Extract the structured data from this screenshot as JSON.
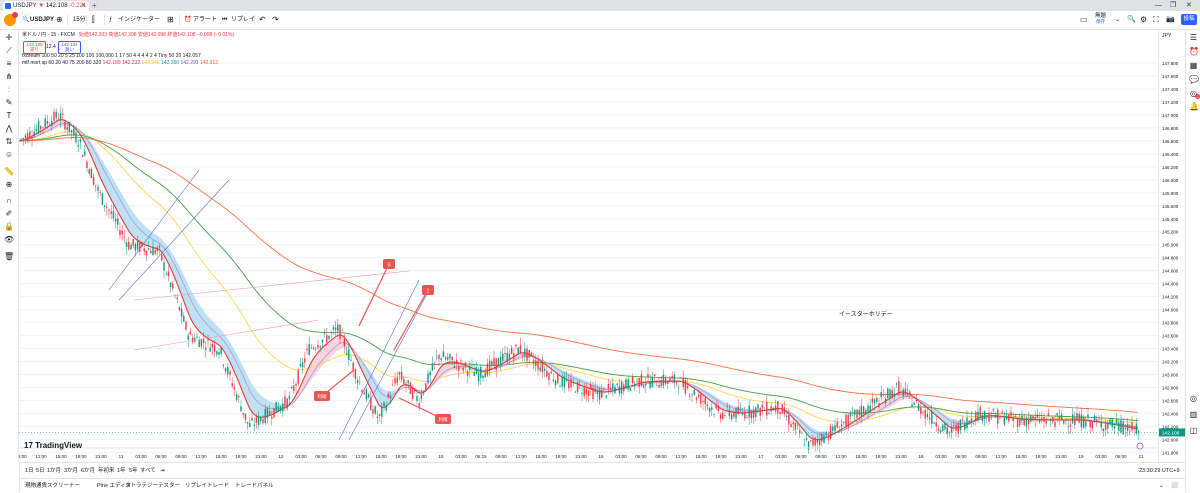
{
  "browser": {
    "tab_title": "USDJPY",
    "tab_price": "142.108",
    "tab_change": "-0.221",
    "new_tab": "+",
    "win_controls": [
      "—",
      "❐",
      "✕"
    ]
  },
  "toolbar": {
    "symbol": "USDJPY",
    "interval": "15分",
    "indicators_label": "インジケーター",
    "alert_label": "アラート",
    "replay_label": "リプレイ",
    "free_label": "無題",
    "free_sub": "保存",
    "publish_label": "投稿"
  },
  "legend": {
    "title": "米ドル / 円 · 15 · FXCM",
    "ohlc": "始値142.303 高値142.308 安値142.098 終値142.108 −0.008 (−0.01%)",
    "line2": "fxdream 100 50 20 5 25 100 100 100,000 1 17 50 4 4 4 4 2 4 Tiny 50 20  142.057",
    "line3_label": "mtf mort sp 60 20 40 75 200 80 320",
    "line3_values": [
      "142.189",
      "142.232",
      "142.246",
      "142.260",
      "142.291",
      "142.312"
    ],
    "sell_price": "142.109",
    "sell_label": "売り",
    "qty": "12.4",
    "buy_price": "142.131",
    "buy_label": "買い"
  },
  "price_axis": {
    "currency": "JPY",
    "labels": [
      "147.800",
      "147.600",
      "147.400",
      "147.200",
      "147.000",
      "146.800",
      "146.600",
      "146.400",
      "146.200",
      "146.000",
      "145.800",
      "145.600",
      "145.400",
      "145.200",
      "145.000",
      "144.800",
      "144.600",
      "144.400",
      "144.200",
      "144.000",
      "143.800",
      "143.600",
      "143.400",
      "143.200",
      "143.000",
      "142.800",
      "142.600",
      "142.400",
      "142.200",
      "142.000",
      "141.800",
      "141.600"
    ],
    "current_price": "142.108"
  },
  "time_axis": {
    "labels": [
      "09:00",
      "12:00",
      "15:00",
      "18:00",
      "21:00",
      "11",
      "03:00",
      "06:00",
      "09:00",
      "12:00",
      "15:00",
      "18:00",
      "21:00",
      "12",
      "03:00",
      "06:00",
      "09:00",
      "12:00",
      "15:00",
      "18:00",
      "21:00",
      "15",
      "03:00",
      "06:15",
      "09:00",
      "12:00",
      "15:00",
      "18:00",
      "21:00",
      "16",
      "03:00",
      "06:00",
      "09:00",
      "12:00",
      "15:00",
      "18:00",
      "21:00",
      "17",
      "03:00",
      "06:00",
      "09:00",
      "12:00",
      "15:00",
      "18:00",
      "21:00",
      "18",
      "03:00",
      "06:00",
      "09:00",
      "12:00",
      "15:00",
      "18:00",
      "21:00",
      "19",
      "03:00",
      "06:00",
      "21"
    ]
  },
  "annotations": {
    "holiday": "イースターホリデー",
    "marker_a": "S",
    "marker_b": "1",
    "label_c": "利確",
    "label_d": "利確"
  },
  "bottom": {
    "ranges": [
      "1日",
      "5日",
      "1か月",
      "3か月",
      "6か月",
      "年初来",
      "1年",
      "5年",
      "すべて"
    ],
    "clock": "23:30:29 UTC+9"
  },
  "panels": [
    "現物通貨スクリーナー",
    "Pine エディタ",
    "ストラテジーテスター",
    "リプレイトレード",
    "トレードパネル"
  ],
  "logo": "TradingView",
  "colors": {
    "up": "#089981",
    "down": "#f23645",
    "accent": "#2962ff"
  }
}
